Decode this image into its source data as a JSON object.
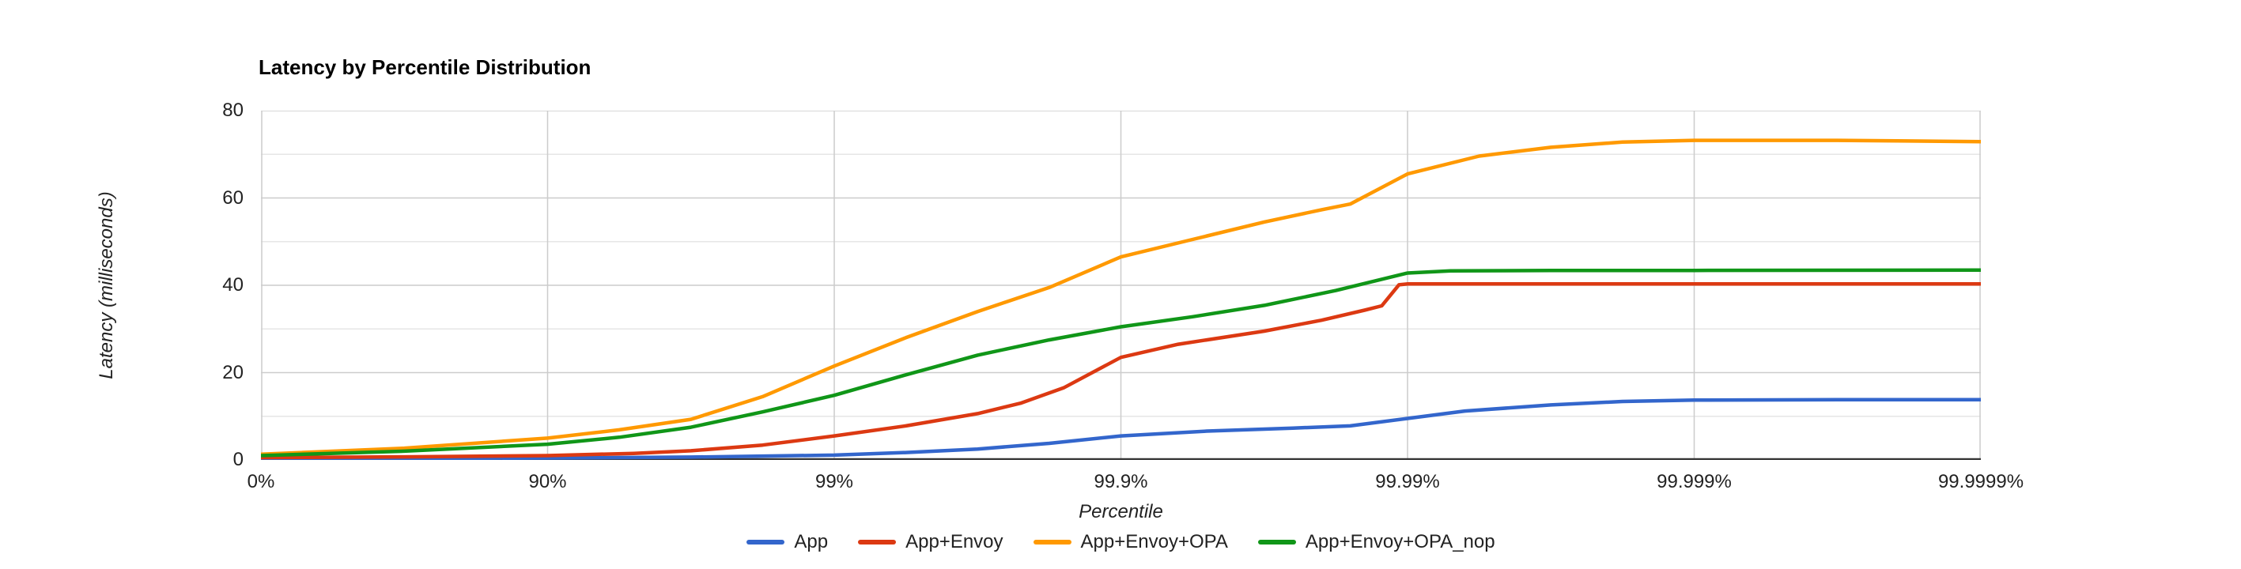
{
  "title": "Latency by Percentile Distribution",
  "chart_data": {
    "type": "line",
    "title": "Latency by Percentile Distribution",
    "xlabel": "Percentile",
    "ylabel": "Latency (milliseconds)",
    "x_scale": "log-percentile (equal spacing per additional nine: 0%, 90%, 99%, ...)",
    "x_ticks": [
      "0%",
      "90%",
      "99%",
      "99.9%",
      "99.99%",
      "99.999%",
      "99.9999%"
    ],
    "ytick_labels": [
      "80",
      "60",
      "40",
      "20",
      "0"
    ],
    "ylim": [
      0,
      80
    ],
    "grid": {
      "major_y": [
        20,
        40,
        60,
        80
      ],
      "minor_y": [
        10,
        30,
        50,
        70
      ],
      "major_color": "#cccccc",
      "minor_color": "#e6e6e6",
      "baseline_color": "#333333"
    },
    "legend_position": "bottom",
    "series": [
      {
        "name": "App",
        "color": "#3366CC",
        "points": [
          [
            0,
            0.3
          ],
          [
            0.5,
            0.35
          ],
          [
            1,
            0.45
          ],
          [
            1.5,
            0.65
          ],
          [
            2,
            1.1
          ],
          [
            2.25,
            1.7
          ],
          [
            2.5,
            2.5
          ],
          [
            2.75,
            3.8
          ],
          [
            3,
            5.5
          ],
          [
            3.3,
            6.6
          ],
          [
            3.6,
            7.3
          ],
          [
            3.8,
            7.8
          ],
          [
            4,
            9.5
          ],
          [
            4.2,
            11.2
          ],
          [
            4.5,
            12.6
          ],
          [
            4.75,
            13.4
          ],
          [
            5,
            13.7
          ],
          [
            5.5,
            13.8
          ],
          [
            6,
            13.8
          ]
        ]
      },
      {
        "name": "App+Envoy",
        "color": "#DC3912",
        "points": [
          [
            0,
            0.55
          ],
          [
            0.5,
            0.7
          ],
          [
            1,
            1.0
          ],
          [
            1.3,
            1.5
          ],
          [
            1.5,
            2.1
          ],
          [
            1.75,
            3.4
          ],
          [
            2,
            5.5
          ],
          [
            2.25,
            7.8
          ],
          [
            2.5,
            10.6
          ],
          [
            2.65,
            13
          ],
          [
            2.8,
            16.5
          ],
          [
            3,
            23.5
          ],
          [
            3.2,
            26.5
          ],
          [
            3.5,
            29.5
          ],
          [
            3.7,
            32
          ],
          [
            3.85,
            34.3
          ],
          [
            3.91,
            35.3
          ],
          [
            3.97,
            40.1
          ],
          [
            4,
            40.3
          ],
          [
            4.5,
            40.3
          ],
          [
            5,
            40.3
          ],
          [
            6,
            40.3
          ]
        ]
      },
      {
        "name": "App+Envoy+OPA",
        "color": "#FF9900",
        "points": [
          [
            0,
            1.3
          ],
          [
            0.5,
            2.7
          ],
          [
            1,
            5.0
          ],
          [
            1.25,
            6.9
          ],
          [
            1.5,
            9.3
          ],
          [
            1.75,
            14.5
          ],
          [
            2,
            21.5
          ],
          [
            2.25,
            28
          ],
          [
            2.5,
            34
          ],
          [
            2.75,
            39.5
          ],
          [
            3,
            46.5
          ],
          [
            3.25,
            50.5
          ],
          [
            3.5,
            54.5
          ],
          [
            3.7,
            57.3
          ],
          [
            3.8,
            58.6
          ],
          [
            4,
            65.5
          ],
          [
            4.25,
            69.6
          ],
          [
            4.5,
            71.6
          ],
          [
            4.75,
            72.8
          ],
          [
            5,
            73.2
          ],
          [
            5.5,
            73.2
          ],
          [
            6,
            72.9
          ]
        ]
      },
      {
        "name": "App+Envoy+OPA_nop",
        "color": "#109618",
        "points": [
          [
            0,
            1.0
          ],
          [
            0.5,
            2.0
          ],
          [
            1,
            3.6
          ],
          [
            1.25,
            5.2
          ],
          [
            1.5,
            7.5
          ],
          [
            1.75,
            11
          ],
          [
            2,
            14.8
          ],
          [
            2.25,
            19.5
          ],
          [
            2.5,
            24
          ],
          [
            2.75,
            27.5
          ],
          [
            3,
            30.5
          ],
          [
            3.25,
            32.8
          ],
          [
            3.5,
            35.4
          ],
          [
            3.75,
            38.8
          ],
          [
            4,
            42.8
          ],
          [
            4.15,
            43.3
          ],
          [
            4.5,
            43.4
          ],
          [
            5,
            43.4
          ],
          [
            6,
            43.5
          ]
        ]
      }
    ]
  }
}
